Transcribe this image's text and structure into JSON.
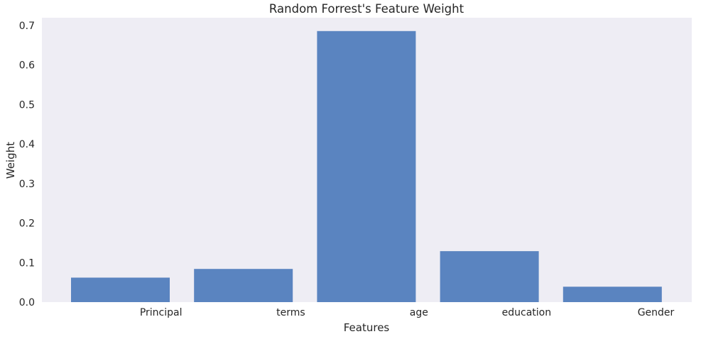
{
  "chart_data": {
    "type": "bar",
    "title": "Random Forrest's Feature Weight",
    "xlabel": "Features",
    "ylabel": "Weight",
    "categories": [
      "Principal",
      "terms",
      "age",
      "education",
      "Gender"
    ],
    "values": [
      0.062,
      0.084,
      0.686,
      0.129,
      0.039
    ],
    "ylim": [
      0,
      0.72
    ],
    "yticks": [
      "0.0",
      "0.1",
      "0.2",
      "0.3",
      "0.4",
      "0.5",
      "0.6",
      "0.7"
    ],
    "grid": false,
    "colors": {
      "bar": "#5a84c0",
      "plot_background": "#eeedf4"
    }
  }
}
